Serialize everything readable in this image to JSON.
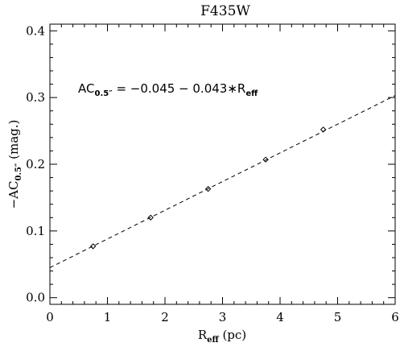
{
  "chart_data": {
    "type": "scatter",
    "title": "F435W",
    "xlabel": {
      "main": "R",
      "sub": "eff",
      "suffix": " (pc)"
    },
    "ylabel": {
      "prefix": "−AC",
      "sub": "0.5″",
      "suffix": " (mag.)"
    },
    "xlim": [
      0,
      6
    ],
    "ylim": [
      -0.01,
      0.41
    ],
    "xticks": [
      0,
      1,
      2,
      3,
      4,
      5,
      6
    ],
    "xtick_labels": [
      "0",
      "1",
      "2",
      "3",
      "4",
      "5",
      "6"
    ],
    "yticks": [
      0.0,
      0.1,
      0.2,
      0.3,
      0.4
    ],
    "ytick_labels": [
      "0.0",
      "0.1",
      "0.2",
      "0.3",
      "0.4"
    ],
    "grid": false,
    "points": [
      {
        "x": 0.75,
        "y": 0.077
      },
      {
        "x": 1.75,
        "y": 0.12
      },
      {
        "x": 2.75,
        "y": 0.163
      },
      {
        "x": 3.75,
        "y": 0.207
      },
      {
        "x": 4.75,
        "y": 0.252
      }
    ],
    "fit_line": {
      "style": "dashed",
      "intercept": 0.045,
      "slope": 0.043,
      "x_range": [
        0,
        6
      ]
    },
    "annotation": {
      "lhs_main": "AC",
      "lhs_sub": "0.5″",
      "rhs": " = −0.045 − 0.043∗R",
      "rhs_sub": "eff"
    },
    "marker": "diamond"
  }
}
